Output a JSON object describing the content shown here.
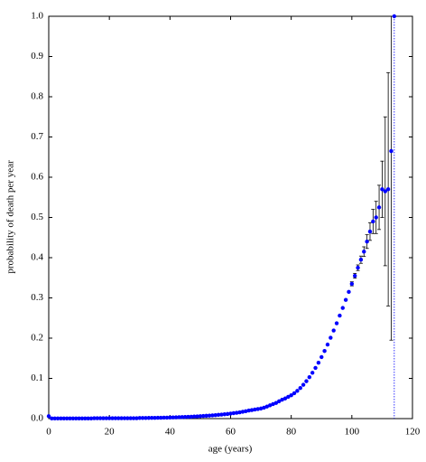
{
  "chart_data": {
    "type": "scatter",
    "xlabel": "age (years)",
    "ylabel": "probability of death per year",
    "xlim": [
      0,
      120
    ],
    "xticks": [
      0,
      20,
      40,
      60,
      80,
      100,
      120
    ],
    "ylim": [
      0,
      1
    ],
    "yticks": [
      {
        "value": 0,
        "label": "0.0"
      },
      0.1,
      0.2,
      0.3,
      0.4,
      0.5,
      0.6,
      0.7,
      0.8,
      0.9,
      {
        "value": 1,
        "label": "1.0"
      }
    ],
    "series": [
      {
        "color": "#0000ff",
        "x": [
          0,
          1,
          2,
          3,
          4,
          5,
          6,
          7,
          8,
          9,
          10,
          11,
          12,
          13,
          14,
          15,
          16,
          17,
          18,
          19,
          20,
          21,
          22,
          23,
          24,
          25,
          26,
          27,
          28,
          29,
          30,
          31,
          32,
          33,
          34,
          35,
          36,
          37,
          38,
          39,
          40,
          41,
          42,
          43,
          44,
          45,
          46,
          47,
          48,
          49,
          50,
          51,
          52,
          53,
          54,
          55,
          56,
          57,
          58,
          59,
          60,
          61,
          62,
          63,
          64,
          65,
          66,
          67,
          68,
          69,
          70,
          71,
          72,
          73,
          74,
          75,
          76,
          77,
          78,
          79,
          80,
          81,
          82,
          83,
          84,
          85,
          86,
          87,
          88,
          89,
          90,
          91,
          92,
          93,
          94,
          95,
          96,
          97,
          98,
          99,
          100,
          101,
          102,
          103,
          104,
          105,
          106,
          107,
          108,
          109,
          110,
          111,
          112,
          113,
          114
        ],
        "values": [
          0.006,
          0.0005,
          0.0005,
          0.0005,
          0.0005,
          0.0005,
          0.0005,
          0.0005,
          0.0005,
          0.0005,
          0.0005,
          0.0005,
          0.0005,
          0.0005,
          0.0005,
          0.001,
          0.001,
          0.001,
          0.001,
          0.001,
          0.001,
          0.001,
          0.001,
          0.001,
          0.001,
          0.001,
          0.001,
          0.001,
          0.001,
          0.001,
          0.0015,
          0.0015,
          0.0016,
          0.0017,
          0.0018,
          0.0019,
          0.002,
          0.0021,
          0.0023,
          0.0025,
          0.0027,
          0.0029,
          0.0031,
          0.0034,
          0.0037,
          0.004,
          0.0043,
          0.0047,
          0.0051,
          0.0055,
          0.006,
          0.0065,
          0.007,
          0.0075,
          0.008,
          0.0086,
          0.0093,
          0.01,
          0.0107,
          0.0115,
          0.0125,
          0.0135,
          0.0145,
          0.0157,
          0.017,
          0.0185,
          0.02,
          0.0212,
          0.0225,
          0.0238,
          0.025,
          0.027,
          0.03,
          0.033,
          0.036,
          0.039,
          0.043,
          0.047,
          0.05,
          0.054,
          0.058,
          0.063,
          0.069,
          0.076,
          0.084,
          0.093,
          0.103,
          0.114,
          0.126,
          0.139,
          0.153,
          0.168,
          0.184,
          0.201,
          0.219,
          0.237,
          0.256,
          0.275,
          0.295,
          0.315,
          0.335,
          0.355,
          0.375,
          0.395,
          0.415,
          0.44,
          0.465,
          0.49,
          0.5,
          0.525,
          0.57,
          0.565,
          0.57,
          0.665,
          1.0
        ],
        "errors": [
          null,
          null,
          null,
          null,
          null,
          null,
          null,
          null,
          null,
          null,
          null,
          null,
          null,
          null,
          null,
          null,
          null,
          null,
          null,
          null,
          null,
          null,
          null,
          null,
          null,
          null,
          null,
          null,
          null,
          null,
          null,
          null,
          null,
          null,
          null,
          null,
          null,
          null,
          null,
          null,
          null,
          null,
          null,
          null,
          null,
          null,
          null,
          null,
          null,
          null,
          null,
          null,
          null,
          null,
          null,
          null,
          null,
          null,
          null,
          null,
          null,
          null,
          null,
          null,
          null,
          null,
          null,
          null,
          null,
          null,
          null,
          null,
          null,
          null,
          null,
          null,
          null,
          null,
          null,
          null,
          null,
          null,
          null,
          null,
          null,
          null,
          null,
          null,
          null,
          null,
          null,
          null,
          null,
          null,
          null,
          null,
          null,
          null,
          null,
          null,
          0.005,
          0.006,
          0.007,
          0.009,
          0.012,
          0.017,
          0.022,
          0.03,
          0.04,
          0.055,
          0.07,
          0.185,
          0.29,
          0.47,
          1.0
        ]
      }
    ]
  }
}
